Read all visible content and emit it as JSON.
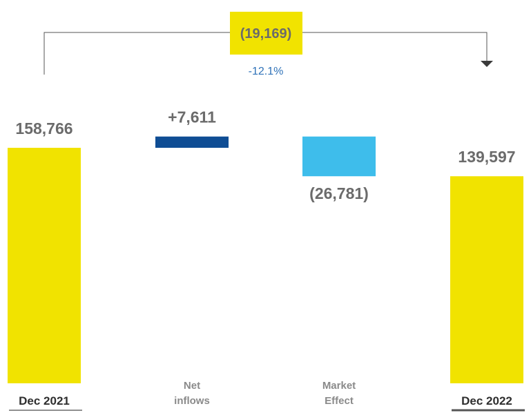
{
  "chart_data": {
    "type": "bar",
    "subtype": "waterfall",
    "categories": [
      {
        "lines": [
          "Dec 2021"
        ],
        "underlined": true
      },
      {
        "lines": [
          "Net",
          "inflows"
        ],
        "underlined": false
      },
      {
        "lines": [
          "Market",
          "Effect"
        ],
        "underlined": false
      },
      {
        "lines": [
          "Dec 2022"
        ],
        "underlined": true
      }
    ],
    "bars": [
      {
        "kind": "total",
        "start": 0,
        "end": 158766,
        "label": "158,766",
        "color": "#f1e300"
      },
      {
        "kind": "increase",
        "start": 158766,
        "end": 166377,
        "label": "+7,611",
        "color": "#0f4d94"
      },
      {
        "kind": "decrease",
        "start": 166377,
        "end": 139596,
        "label": "(26,781)",
        "color": "#3ebdeb"
      },
      {
        "kind": "total",
        "start": 0,
        "end": 139597,
        "label": "139,597",
        "color": "#f1e300"
      }
    ],
    "change": {
      "label": "(19,169)",
      "value": -19169,
      "percent_label": "-12.1%",
      "box_color": "#f1e300"
    },
    "colors": {
      "increase": "#0f4d94",
      "decrease": "#3ebdeb",
      "total": "#f1e300",
      "bracket": "#555555",
      "percent": "#2f72b8",
      "value_label": "#6b6b6b"
    },
    "ylim": [
      0,
      160000
    ],
    "grid": false,
    "legend": "none"
  }
}
